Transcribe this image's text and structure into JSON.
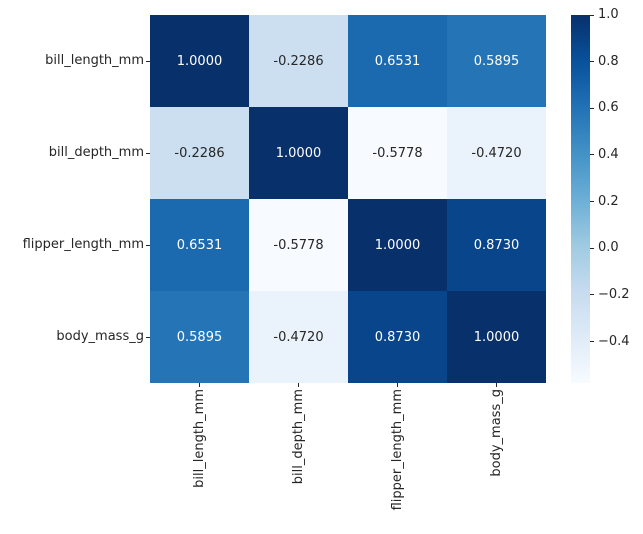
{
  "chart_data": {
    "type": "heatmap",
    "title": "",
    "xlabel": "",
    "ylabel": "",
    "categories": [
      "bill_length_mm",
      "bill_depth_mm",
      "flipper_length_mm",
      "body_mass_g"
    ],
    "matrix": [
      [
        1.0,
        -0.2286,
        0.6531,
        0.5895
      ],
      [
        -0.2286,
        1.0,
        -0.5778,
        -0.472
      ],
      [
        0.6531,
        -0.5778,
        1.0,
        0.873
      ],
      [
        0.5895,
        -0.472,
        0.873,
        1.0
      ]
    ],
    "cell_labels": [
      [
        "1.0000",
        "-0.2286",
        "0.6531",
        "0.5895"
      ],
      [
        "-0.2286",
        "1.0000",
        "-0.5778",
        "-0.4720"
      ],
      [
        "0.6531",
        "-0.5778",
        "1.0000",
        "0.8730"
      ],
      [
        "0.5895",
        "-0.4720",
        "0.8730",
        "1.0000"
      ]
    ],
    "colormap": "Blues",
    "colormap_anchors": [
      "#f7fbff",
      "#deebf7",
      "#c6dbef",
      "#9ecae1",
      "#6baed6",
      "#4292c6",
      "#2171b5",
      "#08519c",
      "#08306b"
    ],
    "vmin": -0.5778,
    "vmax": 1.0,
    "legend_position": "right",
    "grid": false,
    "colorbar": {
      "tick_labels": [
        "1.0",
        "0.8",
        "0.6",
        "0.4",
        "0.2",
        "0.0",
        "−0.2",
        "−0.4"
      ],
      "tick_values": [
        1.0,
        0.8,
        0.6,
        0.4,
        0.2,
        0.0,
        -0.2,
        -0.4
      ]
    },
    "annotation_text_light": "#ffffff",
    "annotation_text_dark": "#262626",
    "tick_label_color": "#262626",
    "background_color": "#ffffff"
  }
}
